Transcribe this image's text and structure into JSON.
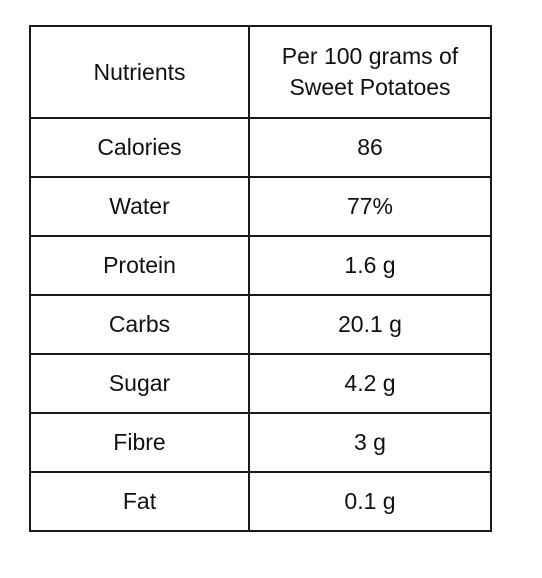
{
  "table": {
    "headers": [
      "Nutrients",
      "Per 100 grams of Sweet Potatoes"
    ],
    "rows": [
      [
        "Calories",
        "86"
      ],
      [
        "Water",
        "77%"
      ],
      [
        "Protein",
        "1.6 g"
      ],
      [
        "Carbs",
        "20.1 g"
      ],
      [
        "Sugar",
        "4.2 g"
      ],
      [
        "Fibre",
        "3 g"
      ],
      [
        "Fat",
        "0.1 g"
      ]
    ]
  }
}
